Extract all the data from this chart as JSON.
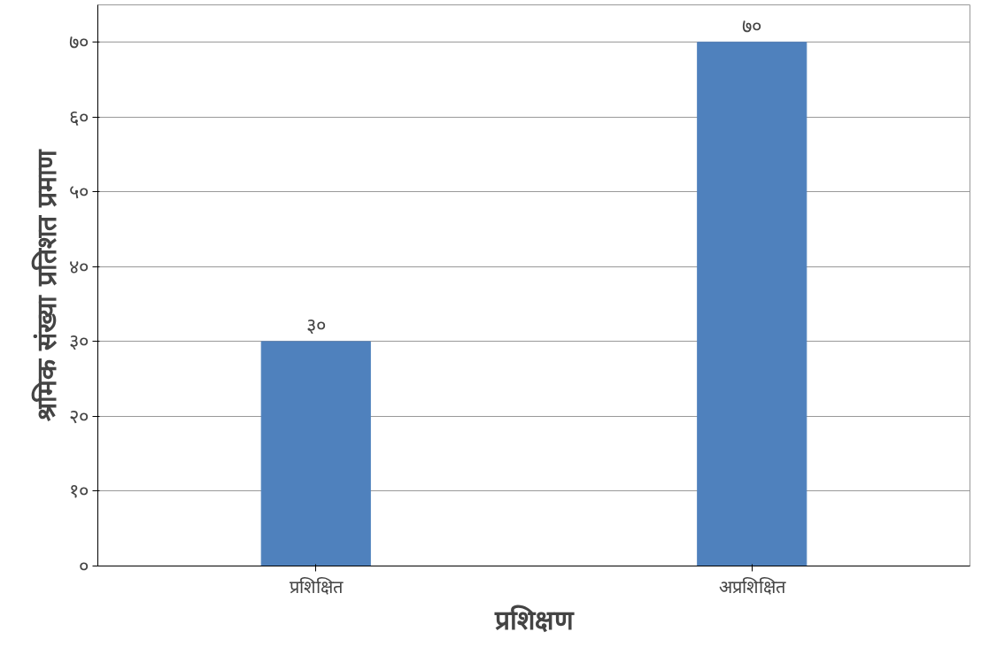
{
  "chart_data": {
    "type": "bar",
    "xlabel": "प्रशिक्षण",
    "ylabel": "श्रमिक संख्या प्रतिशत प्रमाण",
    "categories": [
      "प्रशिक्षित",
      "अप्रशिक्षित"
    ],
    "values": [
      30,
      70
    ],
    "color": "#4f81bd",
    "value_labels": [
      "३०",
      "७०"
    ],
    "ylim": [
      0,
      75
    ],
    "yticks": [
      {
        "value": 0,
        "label": "०"
      },
      {
        "value": 10,
        "label": "१०"
      },
      {
        "value": 20,
        "label": "२०"
      },
      {
        "value": 30,
        "label": "३०"
      },
      {
        "value": 40,
        "label": "४०"
      },
      {
        "value": 50,
        "label": "५०"
      },
      {
        "value": 60,
        "label": "६०"
      },
      {
        "value": 70,
        "label": "७०"
      }
    ],
    "grid": "y"
  }
}
